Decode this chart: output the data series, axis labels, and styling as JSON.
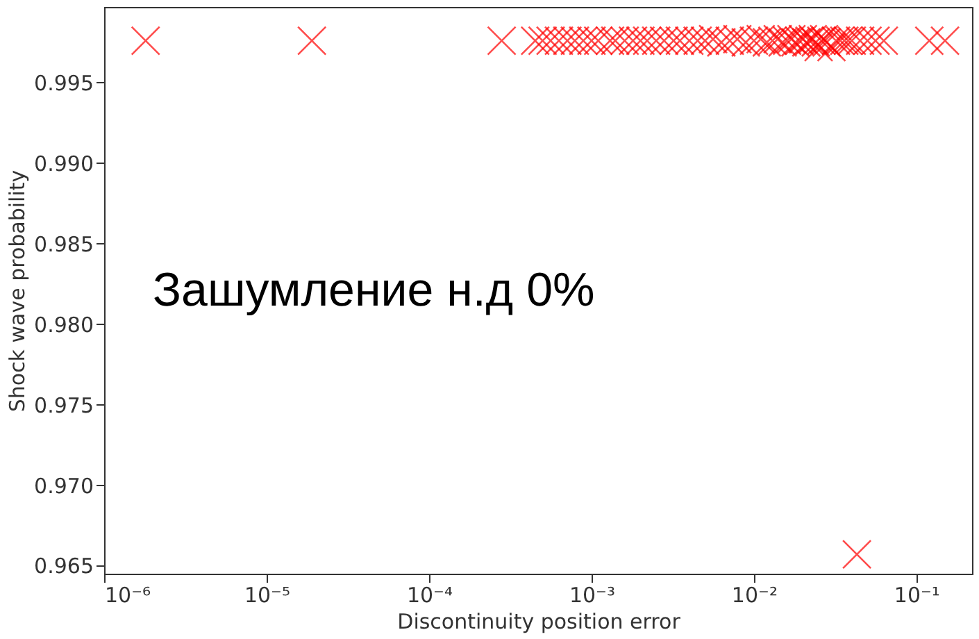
{
  "chart_data": {
    "type": "scatter",
    "xlabel": "Discontinuity position error",
    "ylabel": "Shock wave probability",
    "annotations": [
      "Зашумление н.д 0%"
    ],
    "log": "x",
    "grid": false,
    "marker": "cross",
    "xlim": [
      1e-06,
      0.22
    ],
    "ylim": [
      0.9645,
      0.9997
    ],
    "xticks": [
      {
        "value": 1e-06,
        "label": "10⁻⁶"
      },
      {
        "value": 1e-05,
        "label": "10⁻⁵"
      },
      {
        "value": 0.0001,
        "label": "10⁻⁴"
      },
      {
        "value": 0.001,
        "label": "10⁻³"
      },
      {
        "value": 0.01,
        "label": "10⁻²"
      },
      {
        "value": 0.1,
        "label": "10⁻¹"
      }
    ],
    "yticks": [
      0.965,
      {
        "value": 0.97,
        "label": "0.970"
      },
      0.975,
      {
        "value": 0.98,
        "label": "0.980"
      },
      0.985,
      {
        "value": 0.99,
        "label": "0.990"
      },
      0.995
    ],
    "series": [
      {
        "color": "#ff0000",
        "x": [
          1.8e-06,
          1.9e-05,
          0.00028,
          0.00045,
          0.0005,
          0.00056,
          0.00063,
          0.00071,
          0.00079,
          0.00089,
          0.001,
          0.0011,
          0.0013,
          0.0014,
          0.0016,
          0.0018,
          0.002,
          0.0022,
          0.0025,
          0.0028,
          0.0032,
          0.0035,
          0.004,
          0.0045,
          0.005,
          0.0056,
          0.0063,
          0.0071,
          0.0079,
          0.0089,
          0.01,
          0.011,
          0.012,
          0.013,
          0.014,
          0.015,
          0.016,
          0.017,
          0.018,
          0.019,
          0.02,
          0.021,
          0.022,
          0.023,
          0.024,
          0.025,
          0.026,
          0.027,
          0.028,
          0.03,
          0.032,
          0.034,
          0.036,
          0.038,
          0.04,
          0.045,
          0.05,
          0.056,
          0.063,
          0.12,
          0.15,
          0.043
        ],
        "values": [
          0.9976,
          0.9976,
          0.9976,
          0.9976,
          0.9976,
          0.9976,
          0.9976,
          0.9976,
          0.9976,
          0.9976,
          0.9976,
          0.9976,
          0.9976,
          0.9976,
          0.9976,
          0.9976,
          0.9976,
          0.9976,
          0.9976,
          0.9976,
          0.9976,
          0.9976,
          0.9976,
          0.9976,
          0.9976,
          0.9977,
          0.9975,
          0.9976,
          0.9977,
          0.9975,
          0.9976,
          0.9977,
          0.9975,
          0.9976,
          0.9977,
          0.9975,
          0.9976,
          0.9977,
          0.9975,
          0.9976,
          0.9977,
          0.9975,
          0.9976,
          0.9977,
          0.9975,
          0.9972,
          0.9976,
          0.9977,
          0.9975,
          0.9972,
          0.9976,
          0.9976,
          0.9976,
          0.9976,
          0.9976,
          0.9976,
          0.9976,
          0.9976,
          0.9976,
          0.9976,
          0.9976,
          0.9657
        ]
      }
    ]
  }
}
